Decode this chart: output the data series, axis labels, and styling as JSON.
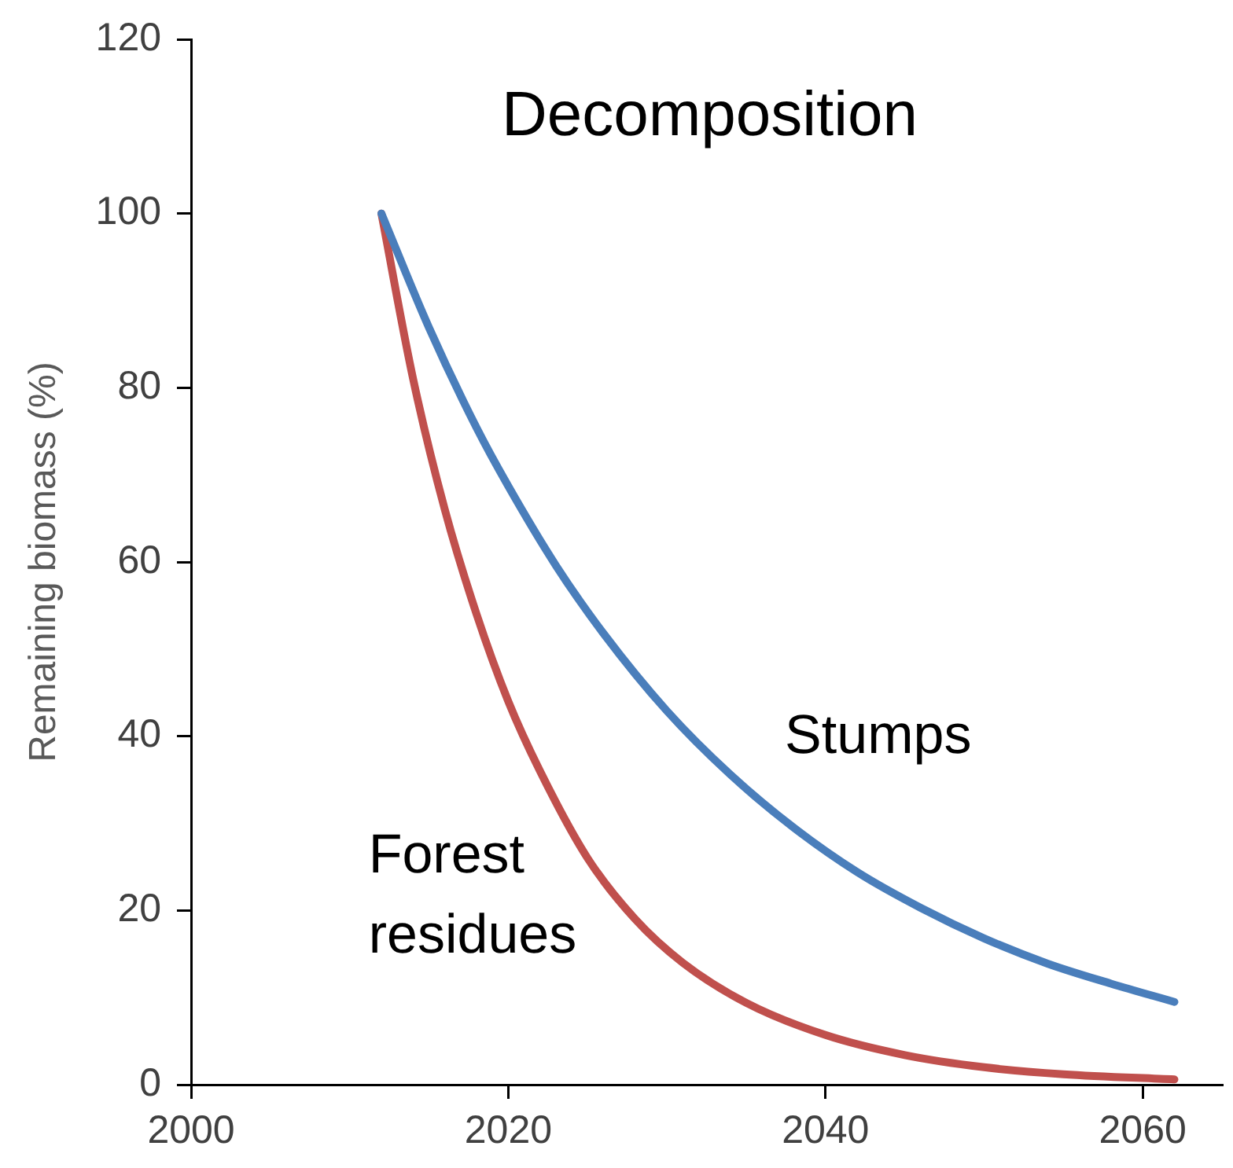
{
  "chart_data": {
    "type": "line",
    "title": "Decomposition",
    "ylabel": "Remaining biomass (%)",
    "xlim": [
      2000,
      2065
    ],
    "xticks": [
      2000,
      2020,
      2040,
      2060
    ],
    "ylim": [
      0,
      120
    ],
    "yticks": [
      0,
      20,
      40,
      60,
      80,
      100,
      120
    ],
    "grid": false,
    "legend": false,
    "marker": "none",
    "line_style": "solid",
    "series": [
      {
        "name": "Stumps",
        "color": "#4a7ebb",
        "x": [
          2012,
          2015,
          2018,
          2020,
          2023,
          2026,
          2030,
          2034,
          2038,
          2042,
          2046,
          2050,
          2054,
          2058,
          2062
        ],
        "values": [
          100,
          86.9,
          75.4,
          68.7,
          59.6,
          51.8,
          42.9,
          35.6,
          29.5,
          24.4,
          20.3,
          16.8,
          13.9,
          11.6,
          9.5
        ]
      },
      {
        "name": "Forest residues",
        "color": "#c0504d",
        "x": [
          2012,
          2014,
          2016,
          2018,
          2020,
          2022,
          2025,
          2028,
          2031,
          2035,
          2040,
          2045,
          2050,
          2055,
          2062
        ],
        "values": [
          100,
          81,
          66,
          54,
          44,
          36,
          26,
          19,
          14,
          9.4,
          5.7,
          3.4,
          2.0,
          1.2,
          0.6
        ]
      }
    ]
  }
}
